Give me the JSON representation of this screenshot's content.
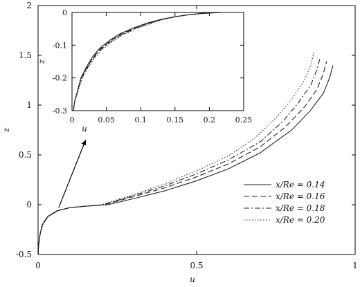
{
  "chart_data": [
    {
      "type": "line",
      "xlabel": "u",
      "ylabel": "z",
      "xlim": [
        0,
        1
      ],
      "ylim": [
        -0.5,
        2
      ],
      "xticks": [
        "0",
        "0.5",
        "1"
      ],
      "yticks": [
        "-0.5",
        "0",
        "0.5",
        "1",
        "1.5",
        "2"
      ],
      "xtick_values": [
        0,
        0.5,
        1
      ],
      "ytick_values": [
        -0.5,
        0,
        0.5,
        1,
        1.5,
        2
      ],
      "legend_position": "lower-right",
      "grid": false,
      "series": [
        {
          "name": "x/Re = 0.14",
          "style": "solid",
          "points": [
            [
              0.0,
              -0.5
            ],
            [
              0.002,
              -0.4
            ],
            [
              0.006,
              -0.3
            ],
            [
              0.013,
              -0.2
            ],
            [
              0.03,
              -0.12
            ],
            [
              0.06,
              -0.06
            ],
            [
              0.1,
              -0.03
            ],
            [
              0.15,
              -0.015
            ],
            [
              0.22,
              0.0
            ],
            [
              0.3,
              0.06
            ],
            [
              0.4,
              0.14
            ],
            [
              0.5,
              0.24
            ],
            [
              0.6,
              0.36
            ],
            [
              0.7,
              0.52
            ],
            [
              0.8,
              0.75
            ],
            [
              0.86,
              0.95
            ],
            [
              0.9,
              1.12
            ],
            [
              0.92,
              1.28
            ],
            [
              0.93,
              1.4
            ]
          ]
        },
        {
          "name": "x/Re = 0.16",
          "style": "dashed",
          "points": [
            [
              0.0,
              -0.5
            ],
            [
              0.002,
              -0.4
            ],
            [
              0.006,
              -0.3
            ],
            [
              0.013,
              -0.2
            ],
            [
              0.03,
              -0.12
            ],
            [
              0.06,
              -0.06
            ],
            [
              0.1,
              -0.03
            ],
            [
              0.15,
              -0.015
            ],
            [
              0.21,
              0.0
            ],
            [
              0.3,
              0.08
            ],
            [
              0.4,
              0.17
            ],
            [
              0.5,
              0.28
            ],
            [
              0.6,
              0.41
            ],
            [
              0.7,
              0.58
            ],
            [
              0.78,
              0.78
            ],
            [
              0.84,
              0.98
            ],
            [
              0.88,
              1.16
            ],
            [
              0.9,
              1.32
            ],
            [
              0.91,
              1.44
            ]
          ]
        },
        {
          "name": "x/Re = 0.18",
          "style": "dashdot",
          "points": [
            [
              0.0,
              -0.5
            ],
            [
              0.002,
              -0.4
            ],
            [
              0.006,
              -0.3
            ],
            [
              0.014,
              -0.2
            ],
            [
              0.031,
              -0.12
            ],
            [
              0.062,
              -0.06
            ],
            [
              0.1,
              -0.03
            ],
            [
              0.15,
              -0.015
            ],
            [
              0.205,
              0.0
            ],
            [
              0.3,
              0.09
            ],
            [
              0.4,
              0.19
            ],
            [
              0.5,
              0.31
            ],
            [
              0.6,
              0.45
            ],
            [
              0.7,
              0.63
            ],
            [
              0.77,
              0.83
            ],
            [
              0.82,
              1.02
            ],
            [
              0.86,
              1.2
            ],
            [
              0.88,
              1.36
            ],
            [
              0.89,
              1.48
            ]
          ]
        },
        {
          "name": "x/Re = 0.20",
          "style": "dotted",
          "points": [
            [
              0.0,
              -0.5
            ],
            [
              0.002,
              -0.4
            ],
            [
              0.007,
              -0.3
            ],
            [
              0.015,
              -0.2
            ],
            [
              0.032,
              -0.12
            ],
            [
              0.064,
              -0.06
            ],
            [
              0.1,
              -0.03
            ],
            [
              0.15,
              -0.015
            ],
            [
              0.2,
              0.0
            ],
            [
              0.3,
              0.1
            ],
            [
              0.4,
              0.21
            ],
            [
              0.5,
              0.34
            ],
            [
              0.6,
              0.49
            ],
            [
              0.68,
              0.66
            ],
            [
              0.75,
              0.87
            ],
            [
              0.8,
              1.06
            ],
            [
              0.84,
              1.25
            ],
            [
              0.86,
              1.4
            ],
            [
              0.87,
              1.53
            ]
          ]
        }
      ]
    },
    {
      "type": "line",
      "xlabel": "u",
      "ylabel": "z",
      "xlim": [
        0,
        0.25
      ],
      "ylim": [
        -0.3,
        0
      ],
      "xticks": [
        "0",
        "0.05",
        "0.1",
        "0.15",
        "0.2",
        "0.25"
      ],
      "yticks": [
        "0",
        "-0.1",
        "-0.2",
        "-0.3"
      ],
      "xtick_values": [
        0,
        0.05,
        0.1,
        0.15,
        0.2,
        0.25
      ],
      "ytick_values": [
        0,
        -0.1,
        -0.2,
        -0.3
      ],
      "grid": false,
      "series": [
        {
          "style": "solid",
          "points": [
            [
              0.002,
              -0.3
            ],
            [
              0.004,
              -0.27
            ],
            [
              0.008,
              -0.24
            ],
            [
              0.013,
              -0.2
            ],
            [
              0.02,
              -0.17
            ],
            [
              0.03,
              -0.135
            ],
            [
              0.04,
              -0.11
            ],
            [
              0.055,
              -0.085
            ],
            [
              0.07,
              -0.065
            ],
            [
              0.09,
              -0.047
            ],
            [
              0.11,
              -0.032
            ],
            [
              0.13,
              -0.021
            ],
            [
              0.15,
              -0.013
            ],
            [
              0.17,
              -0.007
            ],
            [
              0.19,
              -0.003
            ],
            [
              0.22,
              0.0
            ]
          ]
        },
        {
          "style": "dashed",
          "points": [
            [
              0.002,
              -0.3
            ],
            [
              0.004,
              -0.27
            ],
            [
              0.008,
              -0.24
            ],
            [
              0.013,
              -0.2
            ],
            [
              0.021,
              -0.17
            ],
            [
              0.031,
              -0.137
            ],
            [
              0.041,
              -0.112
            ],
            [
              0.056,
              -0.087
            ],
            [
              0.071,
              -0.067
            ],
            [
              0.091,
              -0.048
            ],
            [
              0.111,
              -0.033
            ],
            [
              0.13,
              -0.022
            ],
            [
              0.15,
              -0.013
            ],
            [
              0.17,
              -0.007
            ],
            [
              0.19,
              -0.003
            ],
            [
              0.215,
              0.0
            ]
          ]
        },
        {
          "style": "dashdot",
          "points": [
            [
              0.002,
              -0.3
            ],
            [
              0.004,
              -0.27
            ],
            [
              0.008,
              -0.24
            ],
            [
              0.014,
              -0.2
            ],
            [
              0.022,
              -0.17
            ],
            [
              0.032,
              -0.138
            ],
            [
              0.042,
              -0.113
            ],
            [
              0.057,
              -0.088
            ],
            [
              0.072,
              -0.068
            ],
            [
              0.092,
              -0.049
            ],
            [
              0.112,
              -0.034
            ],
            [
              0.13,
              -0.022
            ],
            [
              0.15,
              -0.013
            ],
            [
              0.17,
              -0.007
            ],
            [
              0.19,
              -0.002
            ],
            [
              0.21,
              0.0
            ]
          ]
        },
        {
          "style": "dotted",
          "points": [
            [
              0.002,
              -0.3
            ],
            [
              0.004,
              -0.27
            ],
            [
              0.009,
              -0.24
            ],
            [
              0.015,
              -0.2
            ],
            [
              0.023,
              -0.17
            ],
            [
              0.033,
              -0.14
            ],
            [
              0.043,
              -0.115
            ],
            [
              0.058,
              -0.09
            ],
            [
              0.073,
              -0.07
            ],
            [
              0.093,
              -0.05
            ],
            [
              0.113,
              -0.035
            ],
            [
              0.13,
              -0.023
            ],
            [
              0.15,
              -0.014
            ],
            [
              0.17,
              -0.007
            ],
            [
              0.19,
              -0.002
            ],
            [
              0.205,
              0.0
            ]
          ]
        }
      ]
    }
  ]
}
